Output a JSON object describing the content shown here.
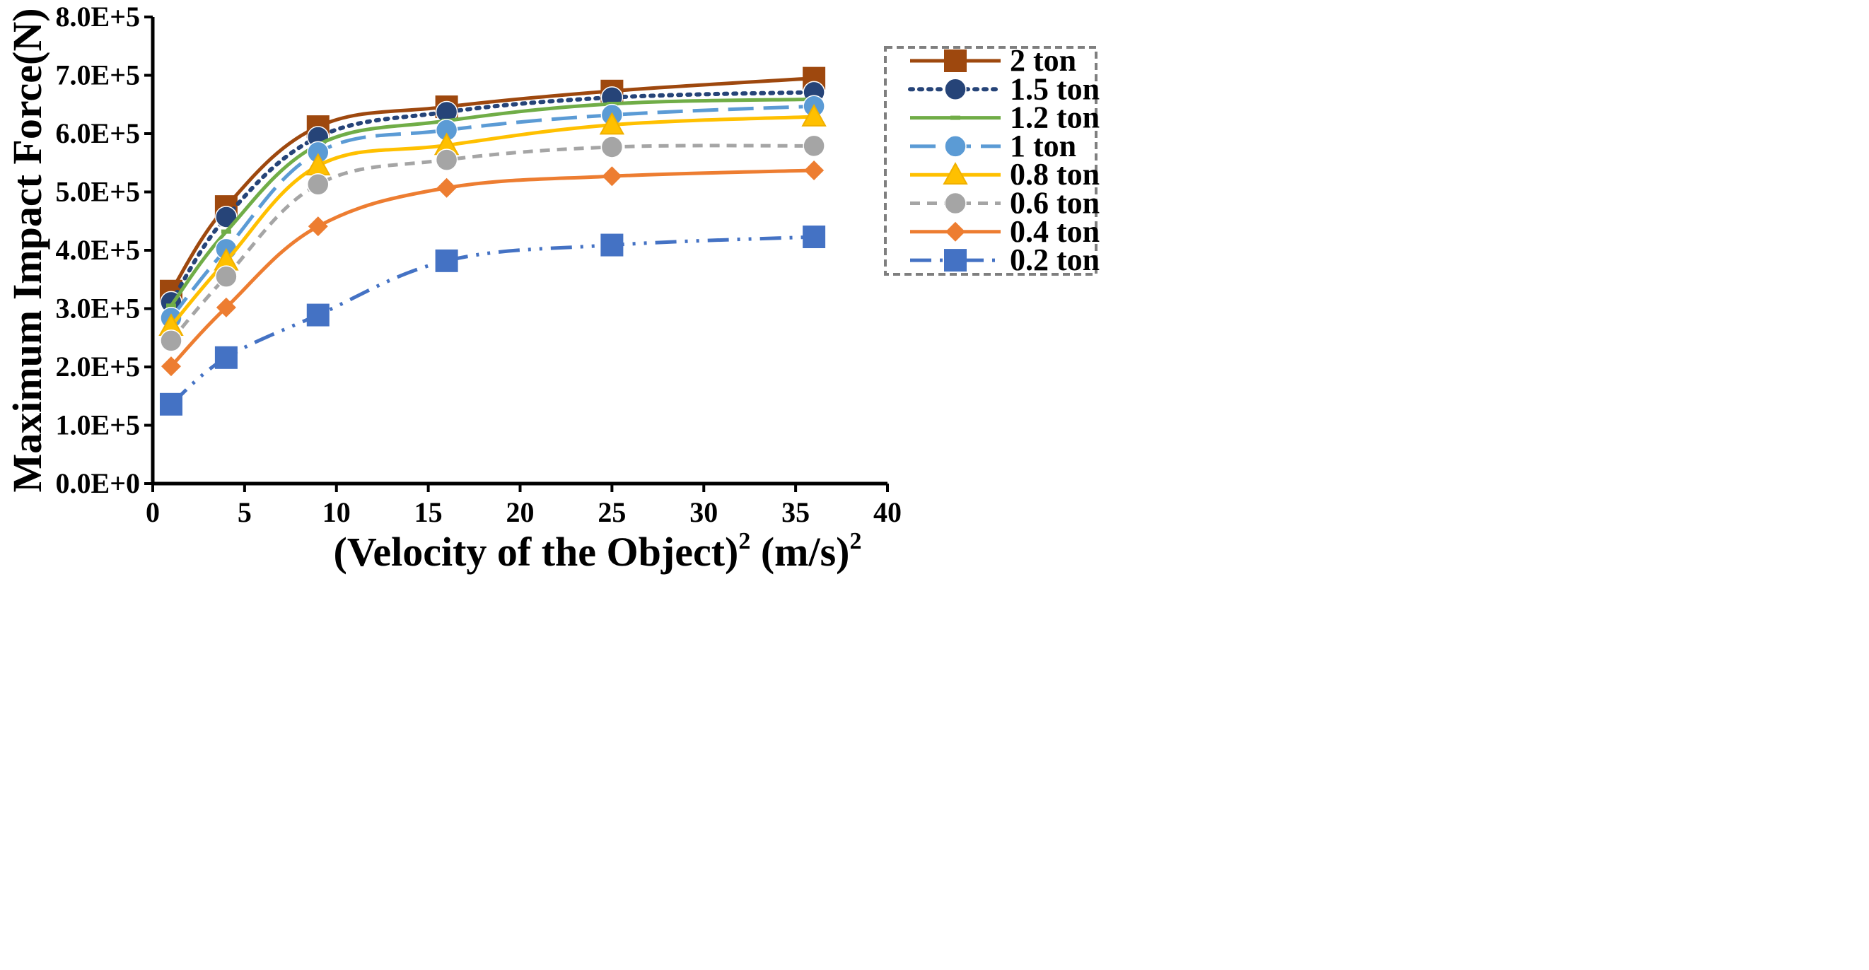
{
  "chart_data": {
    "type": "line",
    "title": "",
    "xlabel_main": "(Velocity of the Object)",
    "xlabel_sup1": "2",
    "xlabel_mid": " (m/s)",
    "xlabel_sup2": "2",
    "ylabel": "Maximum Impact Force(N)",
    "xlim": [
      0,
      40
    ],
    "ylim": [
      0,
      800000
    ],
    "x_ticks": [
      "0",
      "5",
      "10",
      "15",
      "20",
      "25",
      "30",
      "35",
      "40"
    ],
    "y_ticks": [
      "0.0E+0",
      "1.0E+5",
      "2.0E+5",
      "3.0E+5",
      "4.0E+5",
      "5.0E+5",
      "6.0E+5",
      "7.0E+5",
      "8.0E+5"
    ],
    "x": [
      1,
      4,
      9,
      16,
      25,
      36
    ],
    "legend_position": "top-right",
    "series": [
      {
        "name": "2 ton",
        "values": [
          330000,
          475000,
          612000,
          646000,
          673000,
          695000
        ],
        "color": "#9e480e",
        "dash": "solid",
        "marker": "square"
      },
      {
        "name": "1.5 ton",
        "values": [
          311000,
          457000,
          594000,
          637000,
          662000,
          671000
        ],
        "color": "#264478",
        "dash": "dot",
        "marker": "circle"
      },
      {
        "name": "1.2 ton",
        "values": [
          305000,
          432000,
          581000,
          622000,
          651000,
          659000
        ],
        "color": "#70ad47",
        "dash": "solid",
        "marker": "dash"
      },
      {
        "name": "1 ton",
        "values": [
          284000,
          402000,
          568000,
          606000,
          632000,
          647000
        ],
        "color": "#5b9bd5",
        "dash": "longdash",
        "marker": "circle"
      },
      {
        "name": "0.8 ton",
        "values": [
          270000,
          382000,
          545000,
          580000,
          615000,
          629000
        ],
        "color": "#ffc000",
        "dash": "solid",
        "marker": "triangle"
      },
      {
        "name": "0.6 ton",
        "values": [
          245000,
          355000,
          513000,
          555000,
          577000,
          579000
        ],
        "color": "#a5a5a5",
        "dash": "shortdash",
        "marker": "circle"
      },
      {
        "name": "0.4 ton",
        "values": [
          201000,
          302000,
          441000,
          507000,
          527000,
          537000
        ],
        "color": "#ed7d31",
        "dash": "solid",
        "marker": "diamond"
      },
      {
        "name": "0.2 ton",
        "values": [
          136000,
          216000,
          289000,
          382000,
          409000,
          423000
        ],
        "color": "#4472c4",
        "dash": "dashdotdot",
        "marker": "square"
      }
    ]
  }
}
